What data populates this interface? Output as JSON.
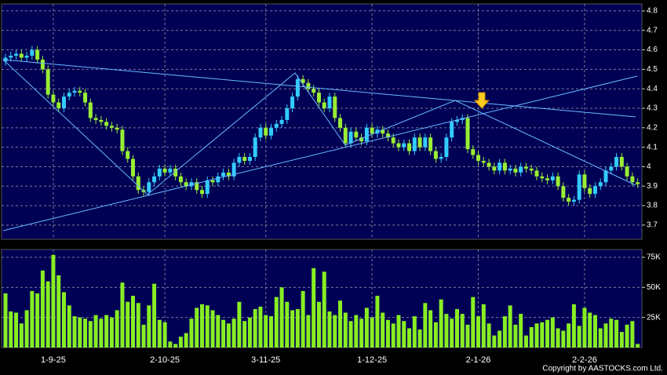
{
  "chart_data": [
    {
      "type": "candlestick",
      "open": [
        4.54,
        4.56,
        4.57,
        4.58,
        4.56,
        4.57,
        4.6,
        4.55,
        4.5,
        4.37,
        4.33,
        4.3,
        4.36,
        4.38,
        4.39,
        4.38,
        4.33,
        4.25,
        4.24,
        4.23,
        4.21,
        4.2,
        4.19,
        4.08,
        4.04,
        3.95,
        3.88,
        3.87,
        3.92,
        3.95,
        3.99,
        3.97,
        3.99,
        3.95,
        3.92,
        3.9,
        3.92,
        3.88,
        3.86,
        3.93,
        3.92,
        3.95,
        3.97,
        3.95,
        4.02,
        4.05,
        4.03,
        4.05,
        4.15,
        4.2,
        4.16,
        4.2,
        4.22,
        4.24,
        4.3,
        4.36,
        4.45,
        4.43,
        4.4,
        4.38,
        4.33,
        4.3,
        4.36,
        4.25,
        4.2,
        4.12,
        4.18,
        4.15,
        4.13,
        4.2,
        4.17,
        4.19,
        4.17,
        4.15,
        4.12,
        4.1,
        4.12,
        4.08,
        4.15,
        4.1,
        4.15,
        4.08,
        4.04,
        4.05,
        4.15,
        4.23,
        4.24,
        4.25,
        4.09,
        4.06,
        4.03,
        4.02,
        4.0,
        3.98,
        4.02,
        3.98,
        3.99,
        3.97,
        4.0,
        3.99,
        3.98,
        3.95,
        3.94,
        3.93,
        3.95,
        3.9,
        3.84,
        3.82,
        3.83,
        3.96,
        3.89,
        3.86,
        3.9,
        3.92,
        3.98,
        4.0,
        4.05,
        4.0,
        3.95,
        3.92
      ],
      "high": [
        4.58,
        4.59,
        4.6,
        4.6,
        4.59,
        4.62,
        4.62,
        4.57,
        4.52,
        4.39,
        4.35,
        4.38,
        4.4,
        4.41,
        4.41,
        4.4,
        4.35,
        4.27,
        4.26,
        4.25,
        4.23,
        4.22,
        4.21,
        4.1,
        4.06,
        3.97,
        3.9,
        3.94,
        3.97,
        4.01,
        4.01,
        4.01,
        4.01,
        3.97,
        3.94,
        3.94,
        3.94,
        3.9,
        3.95,
        3.95,
        3.97,
        3.99,
        3.99,
        4.04,
        4.07,
        4.07,
        4.07,
        4.17,
        4.22,
        4.22,
        4.22,
        4.24,
        4.26,
        4.32,
        4.38,
        4.47,
        4.47,
        4.45,
        4.42,
        4.4,
        4.35,
        4.38,
        4.38,
        4.27,
        4.22,
        4.2,
        4.2,
        4.17,
        4.22,
        4.22,
        4.21,
        4.21,
        4.19,
        4.17,
        4.14,
        4.14,
        4.14,
        4.17,
        4.17,
        4.17,
        4.17,
        4.1,
        4.07,
        4.17,
        4.25,
        4.26,
        4.27,
        4.27,
        4.11,
        4.08,
        4.05,
        4.04,
        4.02,
        4.04,
        4.04,
        4.01,
        4.01,
        4.02,
        4.02,
        4.01,
        4.0,
        3.97,
        3.96,
        3.97,
        3.97,
        3.92,
        3.86,
        3.85,
        3.98,
        3.98,
        3.91,
        3.92,
        3.94,
        4.0,
        4.02,
        4.07,
        4.07,
        4.02,
        3.97,
        3.94
      ],
      "low": [
        4.52,
        4.54,
        4.55,
        4.54,
        4.54,
        4.55,
        4.53,
        4.48,
        4.35,
        4.31,
        4.28,
        4.28,
        4.34,
        4.36,
        4.36,
        4.31,
        4.23,
        4.22,
        4.21,
        4.19,
        4.18,
        4.17,
        4.06,
        4.02,
        3.93,
        3.86,
        3.85,
        3.85,
        3.9,
        3.93,
        3.95,
        3.95,
        3.93,
        3.9,
        3.88,
        3.88,
        3.86,
        3.84,
        3.84,
        3.9,
        3.9,
        3.93,
        3.93,
        3.93,
        4.0,
        4.01,
        4.01,
        4.03,
        4.13,
        4.14,
        4.14,
        4.18,
        4.2,
        4.22,
        4.28,
        4.34,
        4.41,
        4.38,
        4.36,
        4.31,
        4.28,
        4.28,
        4.23,
        4.18,
        4.1,
        4.1,
        4.13,
        4.11,
        4.11,
        4.15,
        4.15,
        4.15,
        4.13,
        4.1,
        4.08,
        4.08,
        4.06,
        4.06,
        4.08,
        4.08,
        4.06,
        4.02,
        4.02,
        4.03,
        4.13,
        4.21,
        4.22,
        4.07,
        4.04,
        4.01,
        4.0,
        3.98,
        3.96,
        3.96,
        3.96,
        3.96,
        3.95,
        3.95,
        3.97,
        3.96,
        3.93,
        3.92,
        3.91,
        3.91,
        3.88,
        3.82,
        3.8,
        3.8,
        3.81,
        3.87,
        3.84,
        3.84,
        3.88,
        3.9,
        3.96,
        3.98,
        3.98,
        3.93,
        3.9,
        3.89
      ],
      "close": [
        4.56,
        4.57,
        4.58,
        4.56,
        4.57,
        4.6,
        4.55,
        4.5,
        4.37,
        4.33,
        4.3,
        4.36,
        4.38,
        4.39,
        4.38,
        4.33,
        4.25,
        4.24,
        4.23,
        4.21,
        4.2,
        4.19,
        4.08,
        4.04,
        3.95,
        3.88,
        3.87,
        3.92,
        3.95,
        3.99,
        3.97,
        3.99,
        3.95,
        3.92,
        3.9,
        3.92,
        3.88,
        3.86,
        3.93,
        3.92,
        3.95,
        3.97,
        3.95,
        4.02,
        4.05,
        4.03,
        4.05,
        4.15,
        4.2,
        4.16,
        4.2,
        4.22,
        4.24,
        4.3,
        4.36,
        4.45,
        4.43,
        4.4,
        4.38,
        4.33,
        4.3,
        4.36,
        4.25,
        4.2,
        4.12,
        4.18,
        4.15,
        4.13,
        4.2,
        4.17,
        4.19,
        4.17,
        4.15,
        4.12,
        4.1,
        4.12,
        4.08,
        4.15,
        4.1,
        4.15,
        4.08,
        4.04,
        4.05,
        4.15,
        4.23,
        4.24,
        4.25,
        4.09,
        4.06,
        4.03,
        4.02,
        4.0,
        3.98,
        4.02,
        3.98,
        3.99,
        3.97,
        4.0,
        3.99,
        3.98,
        3.95,
        3.94,
        3.93,
        3.95,
        3.9,
        3.84,
        3.82,
        3.83,
        3.96,
        3.89,
        3.86,
        3.9,
        3.92,
        3.98,
        4.0,
        4.05,
        4.0,
        3.95,
        3.92,
        3.91
      ],
      "up_color": "#33ccff",
      "down_color": "#99ee33",
      "ylim": [
        3.627,
        4.836
      ],
      "yticks": [
        3.7,
        3.8,
        3.9,
        4,
        4.1,
        4.2,
        4.3,
        4.4,
        4.5,
        4.6,
        4.7,
        4.8
      ],
      "grid": true
    },
    {
      "type": "bar",
      "categories": [
        null,
        null,
        null,
        null,
        null,
        null,
        null,
        null,
        null,
        "1-9-25",
        null,
        null,
        null,
        null,
        null,
        null,
        null,
        null,
        null,
        null,
        null,
        null,
        null,
        null,
        null,
        null,
        null,
        null,
        null,
        null,
        "2-10-25",
        null,
        null,
        null,
        null,
        null,
        null,
        null,
        null,
        null,
        null,
        null,
        null,
        null,
        null,
        null,
        null,
        null,
        null,
        "3-11-25",
        null,
        null,
        null,
        null,
        null,
        null,
        null,
        null,
        null,
        null,
        null,
        null,
        null,
        null,
        null,
        null,
        null,
        null,
        null,
        "1-12-25",
        null,
        null,
        null,
        null,
        null,
        null,
        null,
        null,
        null,
        null,
        null,
        null,
        null,
        null,
        null,
        null,
        null,
        null,
        null,
        "2-1-26",
        null,
        null,
        null,
        null,
        null,
        null,
        null,
        null,
        null,
        null,
        null,
        null,
        null,
        null,
        null,
        null,
        null,
        null,
        null,
        "2-2-26",
        null,
        null,
        null,
        null,
        null,
        null,
        null,
        null,
        null,
        null
      ],
      "values": [
        45000,
        30000,
        29000,
        20000,
        31000,
        47000,
        45000,
        64000,
        55000,
        77000,
        60000,
        46000,
        35000,
        26000,
        25000,
        24000,
        22000,
        27000,
        24000,
        27000,
        25000,
        31000,
        54000,
        38000,
        43000,
        37000,
        19000,
        35000,
        53000,
        23000,
        21000,
        5000,
        3000,
        9000,
        12000,
        24000,
        33000,
        36000,
        35000,
        31000,
        27000,
        23000,
        20000,
        24000,
        38000,
        22000,
        25000,
        32000,
        34000,
        27000,
        26000,
        42000,
        50000,
        38000,
        31000,
        32000,
        47000,
        27000,
        66000,
        38000,
        63000,
        30000,
        27000,
        39000,
        29000,
        22000,
        27000,
        24000,
        33000,
        25000,
        43000,
        29000,
        23000,
        20000,
        27000,
        22000,
        16000,
        26000,
        15000,
        37000,
        31000,
        21000,
        40000,
        28000,
        24000,
        32000,
        28000,
        19000,
        42000,
        26000,
        36000,
        20000,
        10000,
        14000,
        26000,
        35000,
        19000,
        28000,
        10000,
        17000,
        20000,
        21000,
        23000,
        25000,
        16000,
        14000,
        20000,
        36000,
        18000,
        33000,
        29000,
        27000,
        16000,
        20000,
        24000,
        23000,
        13000,
        19000,
        22000,
        3000
      ],
      "color": "#88ee22",
      "ylim": [
        0,
        81500
      ],
      "yticks": [
        {
          "value": 25000,
          "label": "25K"
        },
        {
          "value": 50000,
          "label": "50K"
        },
        {
          "value": 75000,
          "label": "75K"
        }
      ],
      "grid": true
    }
  ],
  "footer": "Copyright by AASTOCKS.com Ltd."
}
